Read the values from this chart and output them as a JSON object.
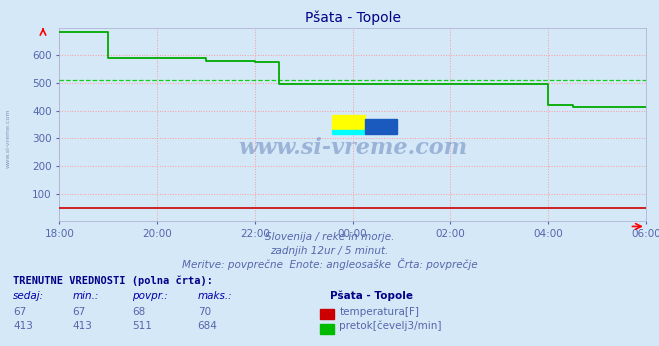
{
  "title": "Pšata - Topole",
  "bg_color": "#d4e8f8",
  "plot_bg_color": "#d4e8f8",
  "grid_color": "#ff9999",
  "grid_style": ":",
  "xlim": [
    0,
    144
  ],
  "ylim": [
    0,
    700
  ],
  "yticks": [
    100,
    200,
    300,
    400,
    500,
    600
  ],
  "xtick_labels": [
    "18:00",
    "20:00",
    "22:00",
    "00:00",
    "02:00",
    "04:00",
    "06:00"
  ],
  "xtick_positions": [
    0,
    24,
    48,
    72,
    96,
    120,
    144
  ],
  "watermark": "www.si-vreme.com",
  "left_watermark": "www.si-vreme.com",
  "subtitle1": "Slovenija / reke in morje.",
  "subtitle2": "zadnjih 12ur / 5 minut.",
  "subtitle3": "Meritve: povprečne  Enote: angleosaške  Črta: povprečje",
  "table_header": "TRENUTNE VREDNOSTI (polna črta):",
  "col_headers": [
    "sedaj:",
    "min.:",
    "povpr.:",
    "maks.:"
  ],
  "station_name": "Pšata - Topole",
  "row1_vals": [
    "67",
    "67",
    "68",
    "70"
  ],
  "row1_label": "temperatura[F]",
  "row1_color": "#cc0000",
  "row2_vals": [
    "413",
    "413",
    "511",
    "684"
  ],
  "row2_label": "pretok[čevelj3/min]",
  "row2_color": "#00bb00",
  "avg_flow": 511,
  "flow_color": "#00aa00",
  "avg_line_color": "#00cc00",
  "temp_color": "#cc0000",
  "flow_x": [
    0,
    12,
    12,
    36,
    36,
    48,
    48,
    54,
    54,
    120,
    120,
    126,
    126,
    144
  ],
  "flow_y": [
    684,
    684,
    590,
    590,
    580,
    580,
    575,
    575,
    497,
    497,
    420,
    420,
    413,
    413
  ],
  "temp_y": 50
}
